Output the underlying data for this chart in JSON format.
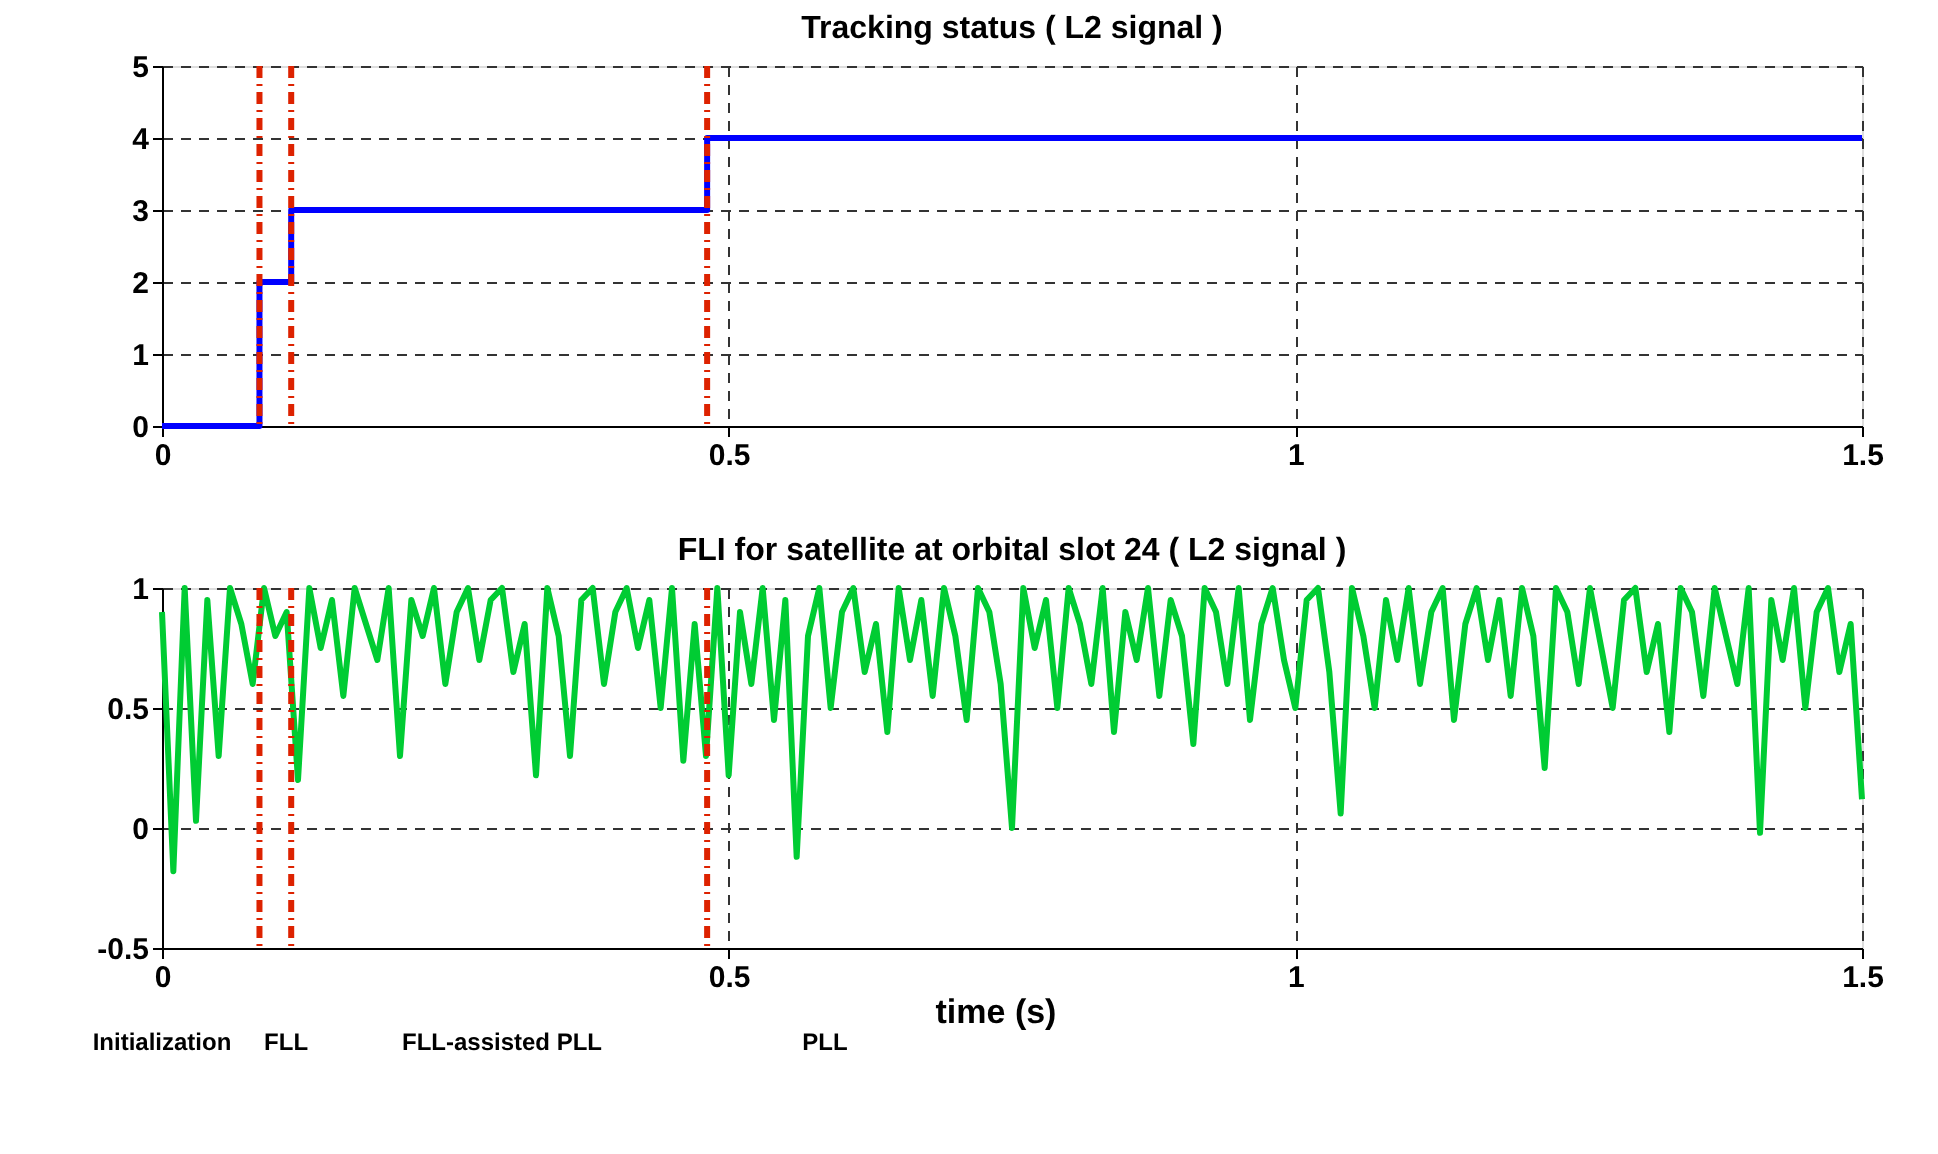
{
  "chart_data": [
    {
      "type": "step",
      "title": "Tracking status ( L2 signal )",
      "x": [
        0,
        0.086,
        0.114,
        0.481,
        1.5
      ],
      "series": [
        {
          "color": "#0000ff",
          "values": [
            0,
            2,
            3,
            4,
            4
          ]
        }
      ],
      "xlim": [
        0,
        1.5
      ],
      "xticks": [
        0,
        0.5,
        1,
        1.5
      ],
      "ylim": [
        0,
        5
      ],
      "yticks": [
        0,
        1,
        2,
        3,
        4,
        5
      ],
      "grid": true,
      "line_style": "solid",
      "ref_lines": [
        {
          "axis": "x",
          "value": 0.086,
          "color": "#dd2200",
          "line_style": "dashed"
        },
        {
          "axis": "x",
          "value": 0.114,
          "color": "#dd2200",
          "line_style": "dashed"
        },
        {
          "axis": "x",
          "value": 0.481,
          "color": "#dd2200",
          "line_style": "dashed"
        }
      ]
    },
    {
      "type": "line",
      "title": "FLI for satellite at orbital slot 24 ( L2 signal )",
      "xlabel": "time (s)",
      "x": [
        0,
        0.01,
        0.02,
        0.03,
        0.04,
        0.05,
        0.06,
        0.07,
        0.08,
        0.09,
        0.1,
        0.11,
        0.12,
        0.13,
        0.14,
        0.15,
        0.16,
        0.17,
        0.18,
        0.19,
        0.2,
        0.21,
        0.22,
        0.23,
        0.24,
        0.25,
        0.26,
        0.27,
        0.28,
        0.29,
        0.3,
        0.31,
        0.32,
        0.33,
        0.34,
        0.35,
        0.36,
        0.37,
        0.38,
        0.39,
        0.4,
        0.41,
        0.42,
        0.43,
        0.44,
        0.45,
        0.46,
        0.47,
        0.48,
        0.49,
        0.5,
        0.51,
        0.52,
        0.53,
        0.54,
        0.55,
        0.56,
        0.57,
        0.58,
        0.59,
        0.6,
        0.61,
        0.62,
        0.63,
        0.64,
        0.65,
        0.66,
        0.67,
        0.68,
        0.69,
        0.7,
        0.71,
        0.72,
        0.73,
        0.74,
        0.75,
        0.76,
        0.77,
        0.78,
        0.79,
        0.8,
        0.81,
        0.82,
        0.83,
        0.84,
        0.85,
        0.86,
        0.87,
        0.88,
        0.89,
        0.9,
        0.91,
        0.92,
        0.93,
        0.94,
        0.95,
        0.96,
        0.97,
        0.98,
        0.99,
        1,
        1.01,
        1.02,
        1.03,
        1.04,
        1.05,
        1.06,
        1.07,
        1.08,
        1.09,
        1.1,
        1.11,
        1.12,
        1.13,
        1.14,
        1.15,
        1.16,
        1.17,
        1.18,
        1.19,
        1.2,
        1.21,
        1.22,
        1.23,
        1.24,
        1.25,
        1.26,
        1.27,
        1.28,
        1.29,
        1.3,
        1.31,
        1.32,
        1.33,
        1.34,
        1.35,
        1.36,
        1.37,
        1.38,
        1.39,
        1.4,
        1.41,
        1.42,
        1.43,
        1.44,
        1.45,
        1.46,
        1.47,
        1.48,
        1.49,
        1.5
      ],
      "series": [
        {
          "color": "#00cc33",
          "values": [
            0.9,
            -0.18,
            1,
            0.03,
            0.95,
            0.3,
            1,
            0.85,
            0.6,
            1,
            0.8,
            0.9,
            0.2,
            1,
            0.75,
            0.95,
            0.55,
            1,
            0.85,
            0.7,
            1,
            0.3,
            0.95,
            0.8,
            1,
            0.6,
            0.9,
            1,
            0.7,
            0.95,
            1,
            0.65,
            0.85,
            0.22,
            1,
            0.8,
            0.3,
            0.95,
            1,
            0.6,
            0.9,
            1,
            0.75,
            0.95,
            0.5,
            1,
            0.28,
            0.85,
            0.3,
            1,
            0.22,
            0.9,
            0.6,
            1,
            0.45,
            0.95,
            -0.12,
            0.8,
            1,
            0.5,
            0.9,
            1,
            0.65,
            0.85,
            0.4,
            1,
            0.7,
            0.95,
            0.55,
            1,
            0.8,
            0.45,
            1,
            0.9,
            0.6,
            0.0,
            1,
            0.75,
            0.95,
            0.5,
            1,
            0.85,
            0.6,
            1,
            0.4,
            0.9,
            0.7,
            1,
            0.55,
            0.95,
            0.8,
            0.35,
            1,
            0.9,
            0.6,
            1,
            0.45,
            0.85,
            1,
            0.7,
            0.5,
            0.95,
            1,
            0.65,
            0.06,
            1,
            0.8,
            0.5,
            0.95,
            0.7,
            1,
            0.6,
            0.9,
            1,
            0.45,
            0.85,
            1,
            0.7,
            0.95,
            0.55,
            1,
            0.8,
            0.25,
            1,
            0.9,
            0.6,
            1,
            0.75,
            0.5,
            0.95,
            1,
            0.65,
            0.85,
            0.4,
            1,
            0.9,
            0.55,
            1,
            0.8,
            0.6,
            1,
            -0.02,
            0.95,
            0.7,
            1,
            0.5,
            0.9,
            1,
            0.65,
            0.85,
            0.12
          ]
        }
      ],
      "xlim": [
        0,
        1.5
      ],
      "xticks": [
        0,
        0.5,
        1,
        1.5
      ],
      "ylim": [
        -0.5,
        1
      ],
      "yticks": [
        -0.5,
        0,
        0.5,
        1
      ],
      "grid": true,
      "line_style": "solid",
      "ref_lines": [
        {
          "axis": "x",
          "value": 0.086,
          "color": "#dd2200",
          "line_style": "dashed"
        },
        {
          "axis": "x",
          "value": 0.114,
          "color": "#dd2200",
          "line_style": "dashed"
        },
        {
          "axis": "x",
          "value": 0.481,
          "color": "#dd2200",
          "line_style": "dashed"
        }
      ],
      "annotations": [
        "Initialization",
        "FLL",
        "FLL-assisted PLL",
        "PLL"
      ]
    }
  ]
}
